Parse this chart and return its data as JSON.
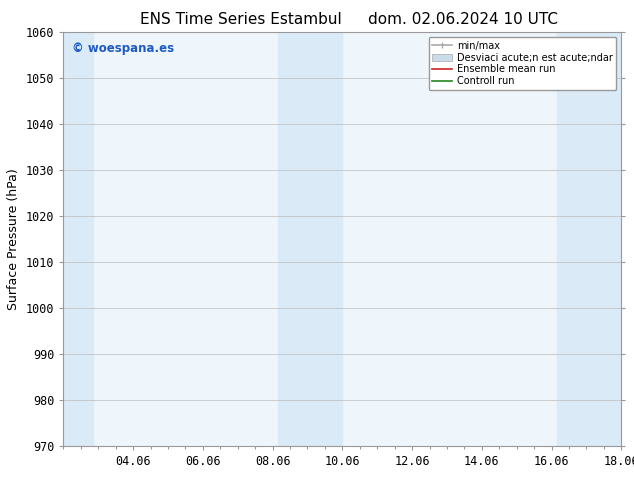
{
  "title_left": "ENS Time Series Estambul",
  "title_right": "dom. 02.06.2024 10 UTC",
  "ylabel": "Surface Pressure (hPa)",
  "ylim": [
    970,
    1060
  ],
  "yticks": [
    970,
    980,
    990,
    1000,
    1010,
    1020,
    1030,
    1040,
    1050,
    1060
  ],
  "xlim_start": 0,
  "xlim_end": 16,
  "xtick_labels": [
    "04.06",
    "06.06",
    "08.06",
    "10.06",
    "12.06",
    "14.06",
    "16.06",
    "18.06"
  ],
  "xtick_positions": [
    2,
    4,
    6,
    8,
    10,
    12,
    14,
    16
  ],
  "shaded_columns": [
    {
      "x_start": -0.1,
      "x_end": 0.85
    },
    {
      "x_start": 6.15,
      "x_end": 8.0
    },
    {
      "x_start": 14.15,
      "x_end": 16.1
    }
  ],
  "shaded_color": "#daeaf7",
  "plot_bg_color": "#eef5fb",
  "background_color": "#ffffff",
  "watermark_text": "© woespana.es",
  "watermark_color": "#1e5bc6",
  "legend_labels": [
    "min/max",
    "Desviaci acute;n est acute;ndar",
    "Ensemble mean run",
    "Controll run"
  ],
  "legend_colors": [
    "#aaaaaa",
    "#c8dcea",
    "#cc2222",
    "#228822"
  ],
  "spine_color": "#999999",
  "tick_color": "#333333",
  "title_fontsize": 11,
  "tick_fontsize": 8.5,
  "ylabel_fontsize": 9
}
